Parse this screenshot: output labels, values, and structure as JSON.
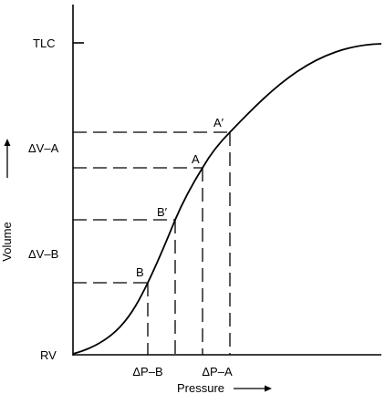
{
  "chart_data": {
    "type": "line",
    "xlabel": "Pressure",
    "ylabel": "Volume",
    "y_ticks": [
      "TLC",
      "ΔV–A",
      "ΔV–B",
      "RV"
    ],
    "x_ticks": [
      "ΔP–B",
      "ΔP–A"
    ],
    "points": [
      "A′",
      "A",
      "B′",
      "B"
    ],
    "grid": false,
    "legend": "none",
    "colors": {
      "line": "#000000",
      "background": "#ffffff"
    }
  }
}
